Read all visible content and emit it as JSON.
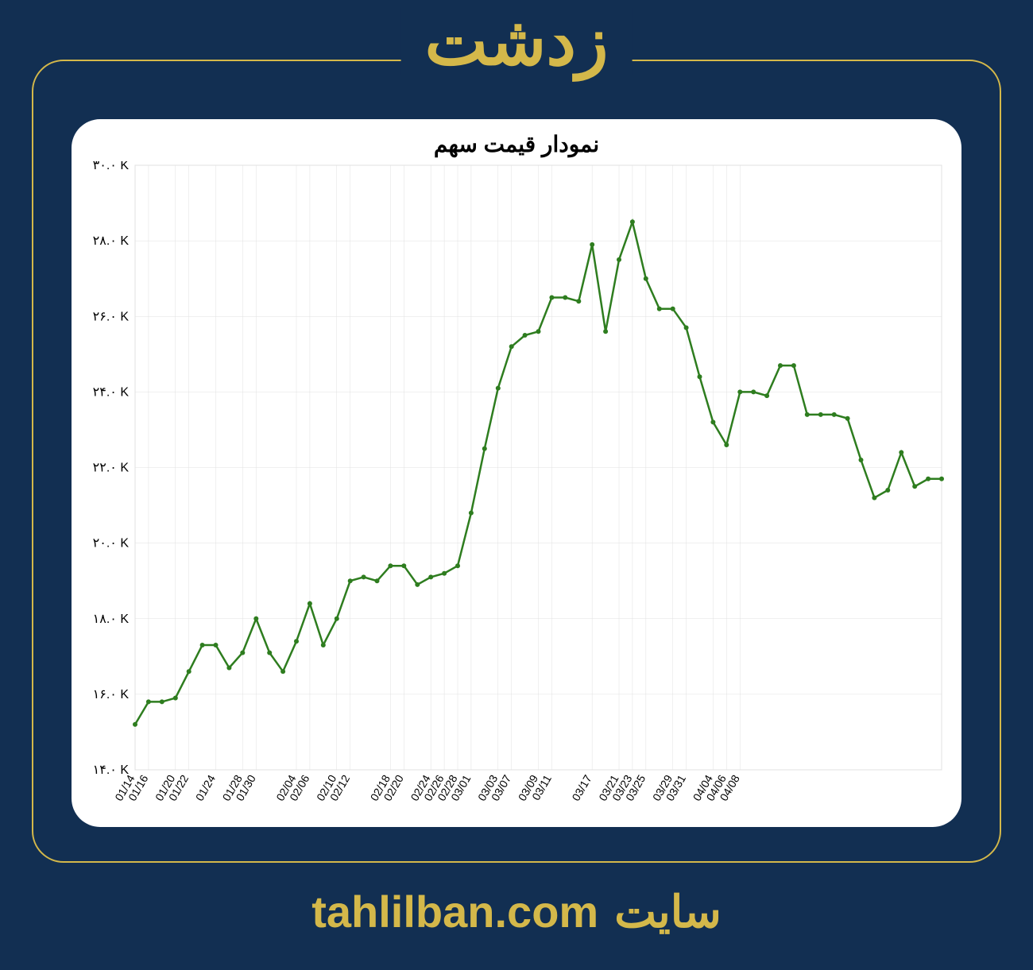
{
  "header": {
    "title": "زدشت"
  },
  "footer": {
    "site_label": "سایت",
    "url": "tahlilban.com"
  },
  "chart": {
    "type": "line",
    "title": "نمودار قیمت سهم",
    "background_color": "#ffffff",
    "page_background": "#122f52",
    "accent_color": "#d4b84a",
    "line_color": "#2e7d1f",
    "marker_color": "#2e7d1f",
    "grid_color": "#e0e0e0",
    "line_width": 2.5,
    "marker_radius": 3,
    "ylim": [
      14000,
      30000
    ],
    "ytick_step": 2000,
    "y_tick_labels": [
      "۱۴.۰ K",
      "۱۶.۰ K",
      "۱۸.۰ K",
      "۲۰.۰ K",
      "۲۲.۰ K",
      "۲۴.۰ K",
      "۲۶.۰ K",
      "۲۸.۰ K",
      "۳۰.۰ K"
    ],
    "x_labels": [
      "01/14",
      "01/16",
      "01/20",
      "01/22",
      "01/24",
      "01/28",
      "01/30",
      "02/04",
      "02/06",
      "02/10",
      "02/12",
      "02/18",
      "02/20",
      "02/24",
      "02/26",
      "02/28",
      "03/01",
      "03/03",
      "03/07",
      "03/09",
      "03/11",
      "03/17",
      "03/21",
      "03/23",
      "03/25",
      "03/29",
      "03/31",
      "04/04",
      "04/06",
      "04/08"
    ],
    "x_label_indices": [
      0,
      1,
      3,
      4,
      6,
      8,
      9,
      12,
      13,
      15,
      16,
      19,
      20,
      22,
      23,
      24,
      25,
      27,
      28,
      30,
      31,
      34,
      36,
      37,
      38,
      40,
      41,
      43,
      44,
      45
    ],
    "values": [
      15200,
      15800,
      15800,
      15900,
      16600,
      17300,
      17300,
      16700,
      17100,
      18000,
      17100,
      16600,
      17400,
      18400,
      17300,
      18000,
      19000,
      19100,
      19000,
      19400,
      19400,
      18900,
      19100,
      19200,
      19400,
      20800,
      22500,
      24100,
      25200,
      25500,
      25600,
      26500,
      26500,
      26400,
      27900,
      25600,
      27500,
      28500,
      27000,
      26200,
      26200,
      25700,
      24400,
      23200,
      22600,
      24000,
      24000,
      23900,
      24700,
      24700,
      23400,
      23400,
      23400,
      23300,
      22200,
      21200,
      21400,
      22400,
      21500,
      21700,
      21700
    ],
    "title_fontsize": 28,
    "ylabel_fontsize": 16,
    "xlabel_fontsize": 14
  }
}
